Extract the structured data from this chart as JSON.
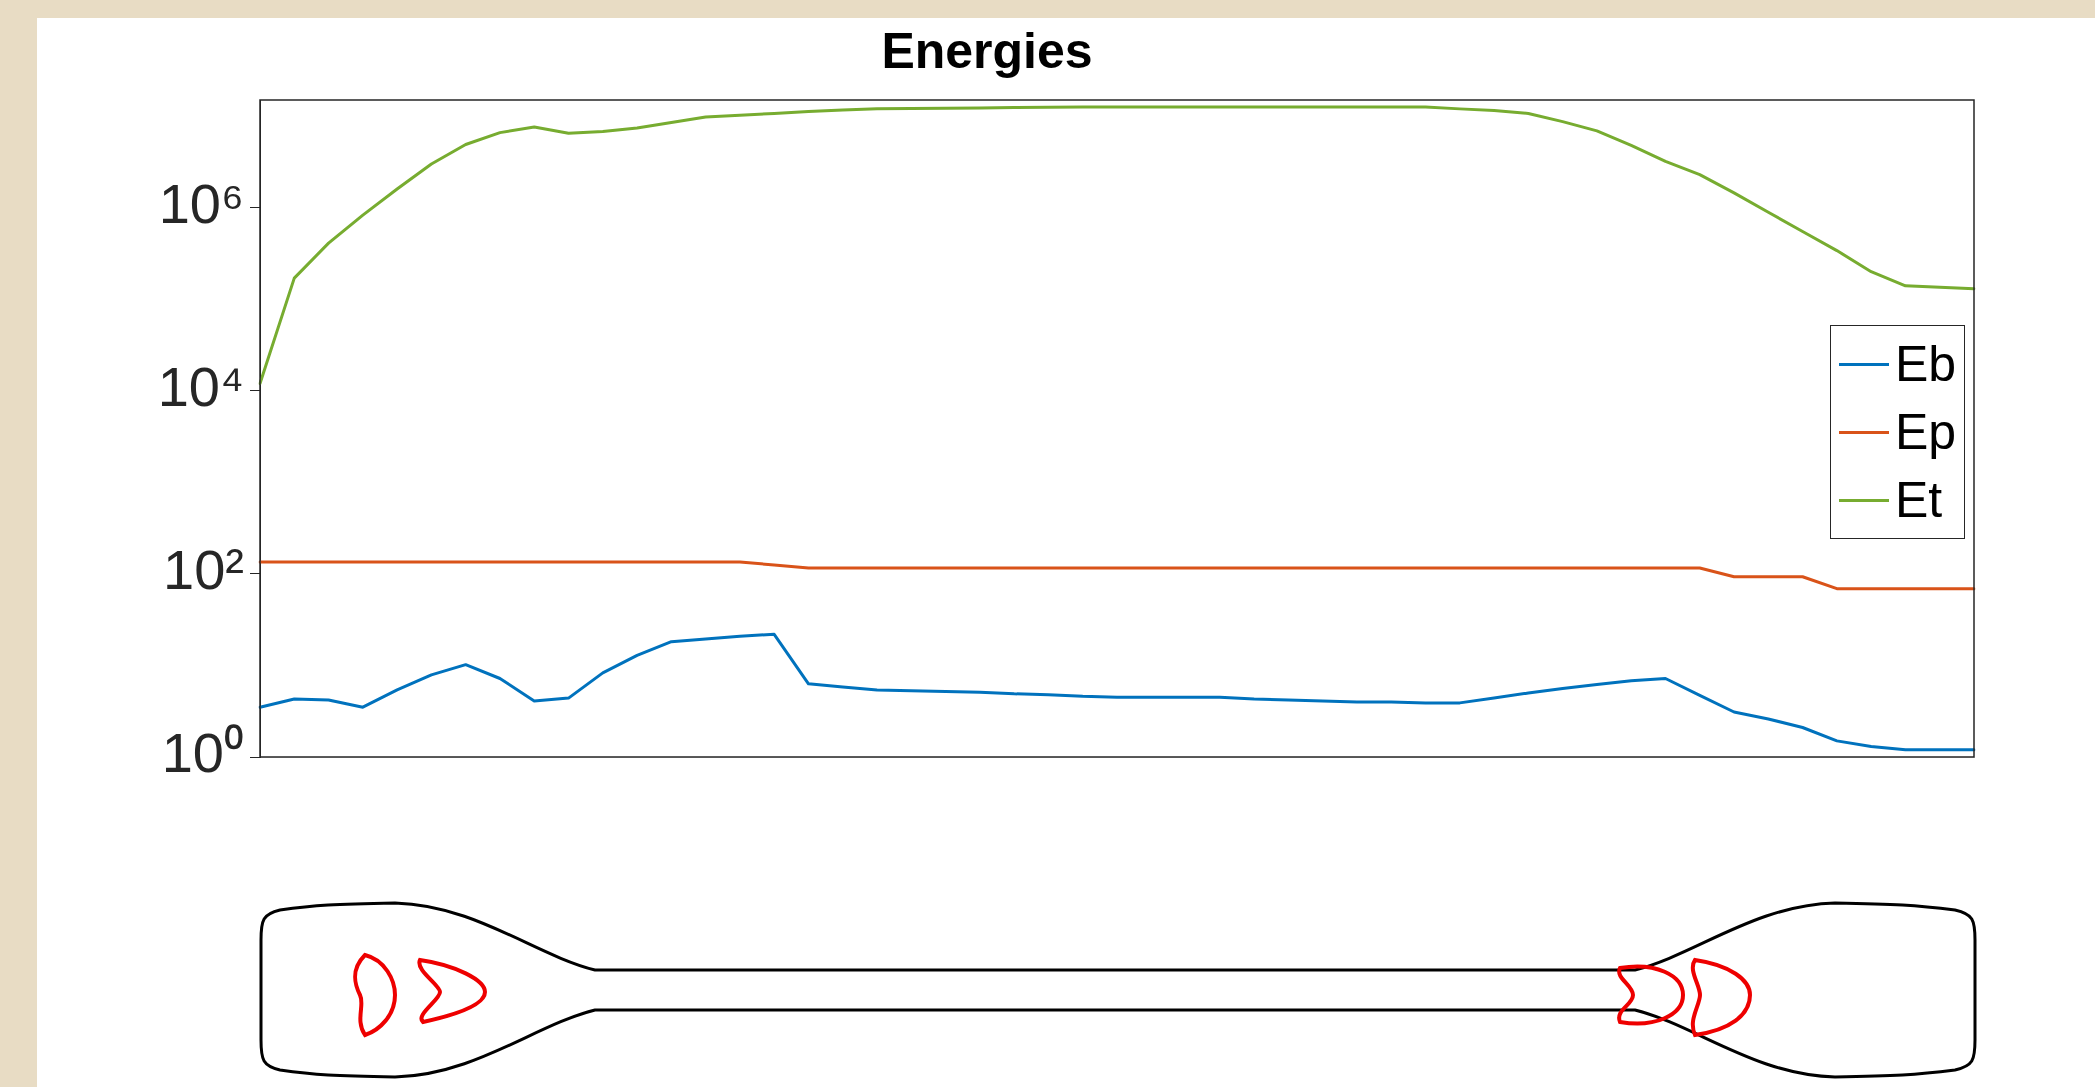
{
  "chart_data": {
    "type": "line",
    "title": "Energies",
    "log": "y",
    "ylim": [
      1,
      15000000
    ],
    "yticks": [
      {
        "value": 1,
        "label": "10⁰"
      },
      {
        "value": 100,
        "label": "10²"
      },
      {
        "value": 10000,
        "label": "10⁴"
      },
      {
        "value": 1000000,
        "label": "10⁶"
      }
    ],
    "categories": [
      null,
      null,
      null,
      null,
      null,
      null,
      null,
      null,
      null,
      null,
      null,
      null,
      null,
      null,
      null,
      null,
      null,
      null,
      null,
      null,
      null,
      null,
      null,
      null,
      null,
      null,
      null,
      null,
      null,
      null,
      null,
      null,
      null,
      null,
      null,
      null,
      null,
      null,
      null,
      null,
      null,
      null,
      null,
      null,
      null,
      null,
      null,
      null,
      null,
      null,
      null
    ],
    "tick_labels": "y",
    "grid": false,
    "legend": "right",
    "marker": "none",
    "line_style": "solid",
    "series": [
      {
        "name": "Eb",
        "color": "#0072bd",
        "values": [
          3.5,
          4.3,
          4.2,
          3.5,
          5.4,
          7.9,
          10.2,
          7.2,
          4.1,
          4.4,
          8.3,
          12.9,
          18.2,
          19.5,
          20.9,
          21.9,
          6.3,
          5.8,
          5.4,
          5.3,
          5.2,
          5.1,
          4.9,
          4.8,
          4.6,
          4.5,
          4.5,
          4.5,
          4.5,
          4.3,
          4.2,
          4.1,
          4.0,
          4.0,
          3.9,
          3.9,
          4.4,
          5.0,
          5.6,
          6.2,
          6.8,
          7.2,
          4.7,
          3.1,
          2.6,
          2.1,
          1.5,
          1.3,
          1.2,
          1.2,
          1.2
        ]
      },
      {
        "name": "Ep",
        "color": "#d95319",
        "values": [
          135,
          135,
          135,
          135,
          135,
          135,
          135,
          135,
          135,
          135,
          135,
          135,
          135,
          135,
          135,
          125,
          116,
          116,
          116,
          116,
          116,
          116,
          116,
          116,
          116,
          116,
          116,
          116,
          116,
          116,
          116,
          116,
          116,
          116,
          116,
          116,
          116,
          116,
          116,
          116,
          116,
          116,
          116,
          93,
          93,
          93,
          69,
          69,
          69,
          69,
          69
        ]
      },
      {
        "name": "Et",
        "color": "#77ac30",
        "values": [
          12000,
          170000,
          410000,
          830000,
          1600000,
          3000000,
          4900000,
          6600000,
          7600000,
          6500000,
          6800000,
          7400000,
          8500000,
          9800000,
          10200000,
          10700000,
          11200000,
          11700000,
          12000000,
          12100000,
          12200000,
          12300000,
          12400000,
          12500000,
          12600000,
          12600000,
          12600000,
          12600000,
          12600000,
          12600000,
          12600000,
          12600000,
          12600000,
          12600000,
          12600000,
          12000000,
          11500000,
          10700000,
          8700000,
          6900000,
          4800000,
          3200000,
          2300000,
          1450000,
          890000,
          550000,
          340000,
          200000,
          140000,
          135000,
          130000
        ]
      }
    ]
  }
}
